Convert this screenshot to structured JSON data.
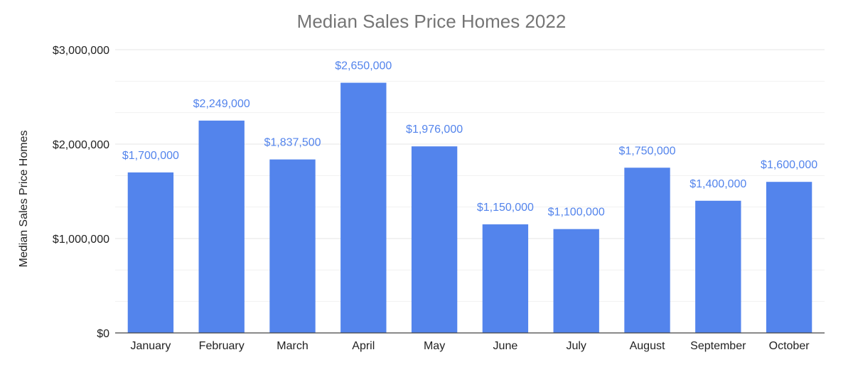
{
  "chart_data": {
    "type": "bar",
    "title": "Median Sales Price Homes 2022",
    "xlabel": "",
    "ylabel": "Median Sales Price Homes",
    "categories": [
      "January",
      "February",
      "March",
      "April",
      "May",
      "June",
      "July",
      "August",
      "September",
      "October"
    ],
    "values": [
      1700000,
      2249000,
      1837500,
      2650000,
      1976000,
      1150000,
      1100000,
      1750000,
      1400000,
      1600000
    ],
    "data_labels": [
      "$1,700,000",
      "$2,249,000",
      "$1,837,500",
      "$2,650,000",
      "$1,976,000",
      "$1,150,000",
      "$1,100,000",
      "$1,750,000",
      "$1,400,000",
      "$1,600,000"
    ],
    "y_ticks": [
      0,
      1000000,
      2000000,
      3000000
    ],
    "y_tick_labels": [
      "$0",
      "$1,000,000",
      "$2,000,000",
      "$3,000,000"
    ],
    "ylim": [
      0,
      3000000
    ],
    "grid": true,
    "legend": "none"
  },
  "colors": {
    "bar": "#5384ec",
    "data_label": "#5384ec",
    "gridline": "#e6e6e6",
    "minor_gridline": "#f1f1f1",
    "axis_line": "#444444",
    "title": "#757575",
    "text": "#222222"
  }
}
